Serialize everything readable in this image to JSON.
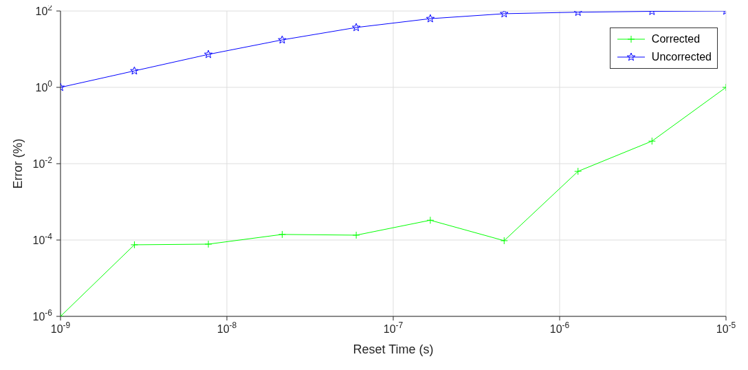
{
  "chart_data": {
    "type": "line",
    "xlabel": "Reset Time (s)",
    "ylabel": "Error (%)",
    "x": [
      1e-09,
      2.78e-09,
      7.74e-09,
      2.15e-08,
      5.99e-08,
      1.67e-07,
      4.64e-07,
      1.29e-06,
      3.59e-06,
      1e-05
    ],
    "series": [
      {
        "name": "Corrected",
        "color": "#00ff00",
        "marker": "cross",
        "values": [
          1e-06,
          7.5e-05,
          7.8e-05,
          0.00014,
          0.000134,
          0.00033,
          9.6e-05,
          0.0063,
          0.039,
          1
        ]
      },
      {
        "name": "Uncorrected",
        "color": "#0000ff",
        "marker": "star",
        "values": [
          1,
          2.7,
          7.3,
          17.5,
          37,
          63,
          85,
          93,
          98,
          100
        ]
      }
    ],
    "log": "xy",
    "xlim": [
      1e-09,
      1e-05
    ],
    "ylim": [
      1e-06,
      100
    ],
    "xticks": [
      {
        "value": 1e-09,
        "label": "10$^{-9}$"
      },
      {
        "value": 1e-08,
        "label": "10$^{-8}$"
      },
      {
        "value": 1e-07,
        "label": "10$^{-7}$"
      },
      {
        "value": 1e-06,
        "label": "10$^{-6}$"
      },
      {
        "value": 1e-05,
        "label": "10$^{-5}$"
      }
    ],
    "yticks": [
      {
        "value": 1e-06,
        "label": "10$^{-6}$"
      },
      {
        "value": 0.0001,
        "label": "10$^{-4}$"
      },
      {
        "value": 0.01,
        "label": "10$^{-2}$"
      },
      {
        "value": 1,
        "label": "10$^{0}$"
      },
      {
        "value": 100,
        "label": "10$^{2}$"
      }
    ],
    "grid": true,
    "legend": "top right",
    "line_style": "solid"
  }
}
